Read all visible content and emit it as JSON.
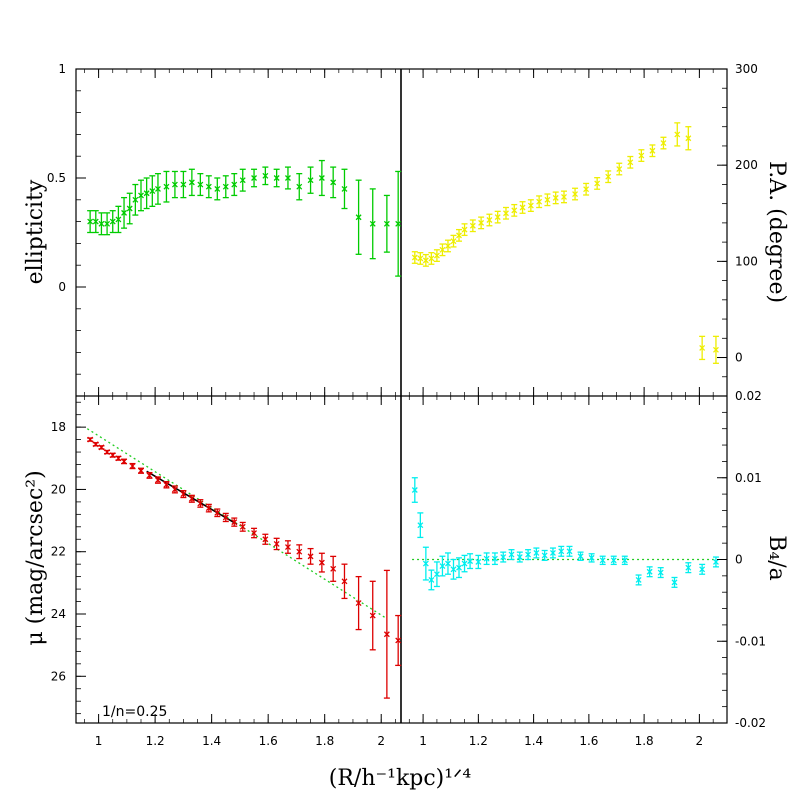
{
  "chart_data": [
    {
      "id": "ellipticity",
      "type": "scatter",
      "panel": "top-left",
      "color": "#00cc00",
      "xlabel": "(R/h⁻¹kpc)¹ᐟ⁴",
      "ylabel": "ellipticity",
      "xlim": [
        0.92,
        2.1
      ],
      "ylim": [
        -0.5,
        1.0
      ],
      "yticks": [
        1,
        0.5,
        0
      ],
      "x": [
        0.97,
        0.99,
        1.01,
        1.03,
        1.05,
        1.07,
        1.09,
        1.11,
        1.13,
        1.15,
        1.17,
        1.19,
        1.21,
        1.24,
        1.27,
        1.3,
        1.33,
        1.36,
        1.39,
        1.42,
        1.45,
        1.48,
        1.51,
        1.55,
        1.59,
        1.63,
        1.67,
        1.71,
        1.75,
        1.79,
        1.83,
        1.87,
        1.92,
        1.97,
        2.02,
        2.06
      ],
      "y": [
        0.3,
        0.3,
        0.29,
        0.29,
        0.3,
        0.31,
        0.34,
        0.36,
        0.4,
        0.42,
        0.43,
        0.44,
        0.45,
        0.46,
        0.47,
        0.47,
        0.48,
        0.47,
        0.46,
        0.45,
        0.46,
        0.47,
        0.49,
        0.5,
        0.51,
        0.5,
        0.5,
        0.46,
        0.49,
        0.5,
        0.48,
        0.45,
        0.32,
        0.29,
        0.29,
        0.29
      ],
      "err": [
        0.05,
        0.05,
        0.05,
        0.05,
        0.05,
        0.06,
        0.07,
        0.07,
        0.07,
        0.07,
        0.07,
        0.07,
        0.07,
        0.07,
        0.06,
        0.06,
        0.06,
        0.05,
        0.05,
        0.05,
        0.05,
        0.05,
        0.05,
        0.04,
        0.04,
        0.04,
        0.05,
        0.06,
        0.06,
        0.08,
        0.07,
        0.09,
        0.17,
        0.16,
        0.13,
        0.24
      ]
    },
    {
      "id": "position-angle",
      "type": "scatter",
      "panel": "top-right",
      "color": "#eeee00",
      "ylabel": "P.A. (degree)",
      "xlim": [
        0.92,
        2.1
      ],
      "ylim": [
        -40,
        300
      ],
      "yticks": [
        300,
        200,
        100,
        0
      ],
      "x": [
        0.97,
        0.99,
        1.01,
        1.03,
        1.05,
        1.07,
        1.09,
        1.11,
        1.13,
        1.15,
        1.18,
        1.21,
        1.24,
        1.27,
        1.3,
        1.33,
        1.36,
        1.39,
        1.42,
        1.45,
        1.48,
        1.51,
        1.55,
        1.59,
        1.63,
        1.67,
        1.71,
        1.75,
        1.79,
        1.83,
        1.87,
        1.92,
        1.96,
        2.01,
        2.06
      ],
      "y": [
        104,
        103,
        101,
        103,
        106,
        112,
        116,
        121,
        127,
        133,
        137,
        140,
        143,
        146,
        150,
        153,
        156,
        158,
        162,
        164,
        166,
        167,
        170,
        175,
        181,
        188,
        196,
        203,
        210,
        215,
        223,
        232,
        228,
        10,
        8
      ],
      "err": [
        6,
        6,
        6,
        6,
        6,
        6,
        6,
        6,
        6,
        6,
        6,
        6,
        6,
        6,
        6,
        6,
        6,
        6,
        6,
        6,
        6,
        6,
        6,
        6,
        6,
        6,
        6,
        6,
        6,
        6,
        6,
        12,
        12,
        12,
        14
      ]
    },
    {
      "id": "surface-brightness",
      "type": "scatter",
      "panel": "bottom-left",
      "color": "#dd0000",
      "ylabel": "μ (mag/arcsec²)",
      "xlim": [
        0.92,
        2.1
      ],
      "ylim": [
        27.5,
        17.0
      ],
      "yticks": [
        18,
        20,
        22,
        24,
        26
      ],
      "xticks": [
        1,
        1.2,
        1.4,
        1.6,
        1.8,
        2
      ],
      "annotation": "1/n=0.25",
      "x": [
        0.97,
        0.99,
        1.01,
        1.03,
        1.05,
        1.07,
        1.09,
        1.12,
        1.15,
        1.18,
        1.21,
        1.24,
        1.27,
        1.3,
        1.33,
        1.36,
        1.39,
        1.42,
        1.45,
        1.48,
        1.51,
        1.55,
        1.59,
        1.63,
        1.67,
        1.71,
        1.75,
        1.79,
        1.83,
        1.87,
        1.92,
        1.97,
        2.02,
        2.06
      ],
      "y": [
        18.4,
        18.55,
        18.65,
        18.8,
        18.9,
        19.0,
        19.1,
        19.25,
        19.4,
        19.55,
        19.7,
        19.85,
        20.0,
        20.15,
        20.3,
        20.45,
        20.6,
        20.75,
        20.9,
        21.05,
        21.2,
        21.4,
        21.6,
        21.75,
        21.85,
        22.0,
        22.15,
        22.35,
        22.55,
        22.95,
        23.65,
        24.05,
        24.65,
        24.85
      ],
      "err": [
        0.05,
        0.05,
        0.05,
        0.05,
        0.06,
        0.06,
        0.07,
        0.08,
        0.08,
        0.09,
        0.1,
        0.1,
        0.11,
        0.11,
        0.11,
        0.12,
        0.12,
        0.12,
        0.13,
        0.13,
        0.14,
        0.15,
        0.16,
        0.18,
        0.2,
        0.22,
        0.25,
        0.3,
        0.4,
        0.55,
        0.85,
        1.1,
        2.05,
        0.8
      ],
      "fit_line": {
        "x": [
          1.17,
          1.49
        ],
        "y": [
          19.42,
          21.12
        ]
      },
      "model_line": {
        "x": [
          0.96,
          2.02
        ],
        "y": [
          18.05,
          24.15
        ]
      }
    },
    {
      "id": "b4-a",
      "type": "scatter",
      "panel": "bottom-right",
      "color": "#00eeee",
      "ylabel": "B₄/a",
      "xlim": [
        0.92,
        2.1
      ],
      "ylim": [
        -0.02,
        0.02
      ],
      "yticks": [
        0.02,
        0.01,
        0,
        -0.01,
        -0.02
      ],
      "xticks": [
        1,
        1.2,
        1.4,
        1.6,
        1.8,
        2
      ],
      "x": [
        0.97,
        0.99,
        1.01,
        1.03,
        1.05,
        1.07,
        1.09,
        1.11,
        1.13,
        1.15,
        1.17,
        1.2,
        1.23,
        1.26,
        1.29,
        1.32,
        1.35,
        1.38,
        1.41,
        1.44,
        1.47,
        1.5,
        1.53,
        1.57,
        1.61,
        1.65,
        1.69,
        1.73,
        1.78,
        1.82,
        1.86,
        1.91,
        1.96,
        2.01,
        2.06
      ],
      "y": [
        0.0085,
        0.0042,
        -0.0005,
        -0.0025,
        -0.0018,
        -0.0008,
        -0.0005,
        -0.0012,
        -0.001,
        -0.0005,
        -0.0002,
        -0.0003,
        0.0001,
        0.0001,
        0.0003,
        0.0006,
        0.0003,
        0.0006,
        0.0008,
        0.0005,
        0.0008,
        0.001,
        0.001,
        0.0004,
        0.0002,
        -0.0001,
        -0.0001,
        -0.0001,
        -0.0025,
        -0.0015,
        -0.0016,
        -0.0028,
        -0.001,
        -0.0012,
        -0.0003
      ],
      "err": [
        0.0015,
        0.0015,
        0.002,
        0.0012,
        0.0015,
        0.0012,
        0.0013,
        0.0012,
        0.0012,
        0.001,
        0.0009,
        0.0008,
        0.0007,
        0.0007,
        0.0006,
        0.0006,
        0.0006,
        0.0006,
        0.0006,
        0.0006,
        0.0006,
        0.0006,
        0.0006,
        0.0005,
        0.0005,
        0.0005,
        0.0005,
        0.0005,
        0.0006,
        0.0006,
        0.0006,
        0.0006,
        0.0006,
        0.0006,
        0.0006
      ],
      "model_line": {
        "x": [
          0.96,
          2.06
        ],
        "y": [
          0.0,
          0.0
        ]
      }
    }
  ],
  "axis_text": {
    "xlabel": "(R/h⁻¹kpc)¹ᐟ⁴",
    "ylabel_tl": "ellipticity",
    "ylabel_tr": "P.A. (degree)",
    "ylabel_bl": "μ (mag/arcsec²)",
    "ylabel_br": "B₄/a",
    "annotation": "1/n=0.25"
  }
}
